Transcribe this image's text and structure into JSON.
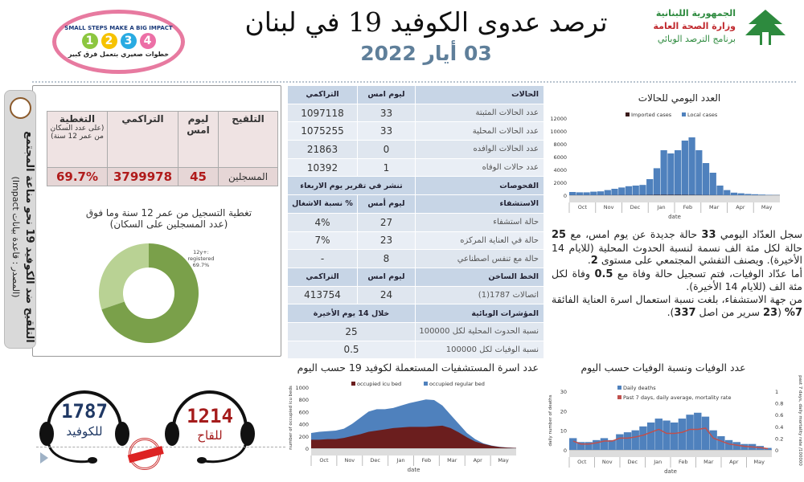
{
  "header": {
    "title": "ترصد عدوى الكوفيد 19 في لبنان",
    "date": "03 أيار 2022",
    "logo_right": [
      "الجمهورية اللبنانية",
      "وزارة الصحة العامة",
      "برنامج الترصد الوبائي"
    ],
    "logo_left": {
      "top": "SMALL STEPS MAKE A BIG IMPACT",
      "bottom": "خطوات صغيري بتعمل فرق كبير",
      "steps": [
        "1",
        "2",
        "3",
        "4"
      ]
    }
  },
  "vaccination": {
    "side_title": "التلقيح ضد الكوفيد 19 نحو مناعة المجتمع",
    "side_source": "(المصدر : قاعدة بيانات Impact)",
    "headers": {
      "vacc": "التلقيح",
      "yesterday": "ليوم امس",
      "cumulative": "التراكمي",
      "coverage": "التغطية",
      "coverage_note": "(على عدد السكان من عمر 12 سنة)"
    },
    "row": {
      "label": "المسجلين",
      "yesterday": "45",
      "cumulative": "3799978",
      "coverage": "69.7%"
    },
    "donut_title": "تغطية التسجيل من عمر 12 سنة وما فوق",
    "donut_subtitle": "(عدد المسجلين على السكان)",
    "donut_label": [
      "12y+:",
      "registered",
      "69.7%"
    ],
    "donut_value": 69.7,
    "colors": {
      "registered": "#7aa04a",
      "rest": "#b9d294"
    }
  },
  "table": {
    "cases_header": [
      "الحالات",
      "ليوم امس",
      "التراكمي"
    ],
    "cases": [
      [
        "عدد الحالات المثبتة",
        "33",
        "1097118"
      ],
      [
        "عدد الحالات المحلية",
        "33",
        "1075255"
      ],
      [
        "عدد الحالات الوافده",
        "0",
        "21863"
      ],
      [
        "عدد حالات الوفاه",
        "1",
        "10392"
      ]
    ],
    "tests_header": [
      "الفحوصات",
      "تنشر في تقرير يوم الاربعاء"
    ],
    "hosp_header": [
      "الاستشفاء",
      "ليوم أمس",
      "% نسبة الاشغال"
    ],
    "hosp": [
      [
        "حالة استشفاء",
        "27",
        "4%"
      ],
      [
        "حالة في العناية المركزه",
        "23",
        "7%"
      ],
      [
        "حالة مع تنفس اصطناعي",
        "8",
        "-"
      ]
    ],
    "hotline_header": [
      "الخط الساخن",
      "ليوم امس",
      "التراكمي"
    ],
    "hotline": [
      "اتصالات 1787(1)",
      "24",
      "413754"
    ],
    "ind_header": [
      "المؤشرات الوبائية",
      "خلال 14 يوم الأخيرة"
    ],
    "ind": [
      [
        "نسبة الحدوث المحلية لكل 100000",
        "25"
      ],
      [
        "نسبة الوفيات لكل 100000",
        "0.5"
      ]
    ]
  },
  "summary": {
    "p1": [
      "سجل العدّاد اليومي ",
      "33",
      " حالة جديدة عن يوم امس، مع ",
      "25",
      " حالة لكل مئة الف نسمة لنسبة الحدوث المحلية (للايام 14 الأخيرة). ويصنف التفشي المجتمعي على مستوى ",
      "2",
      "."
    ],
    "p2": [
      "أما عدّاد الوفيات، فتم تسجيل حالة وفاة مع ",
      "0.5",
      " وفاة لكل مئة الف (للايام 14 الأخيرة)."
    ],
    "p3": [
      "من جهة الاستشفاء، بلغت نسبة استعمال اسرة العناية الفائقة ",
      "7%",
      " (",
      "23",
      " سرير من اصل ",
      "337",
      ")."
    ]
  },
  "hotlines": [
    {
      "number": "1787",
      "label": "للكوفيد",
      "color": "#1f3864"
    },
    {
      "number": "1214",
      "label": "للقاح",
      "color": "#a51c1c"
    }
  ],
  "chart_data": [
    {
      "type": "bar",
      "title": "العدد اليومي للحالات",
      "xlabel": "date",
      "ylim": [
        0,
        12000
      ],
      "yticks": [
        0,
        2000,
        4000,
        6000,
        8000,
        10000,
        12000
      ],
      "months": [
        "Oct",
        "Nov",
        "Dec",
        "Jan",
        "Feb",
        "Mar",
        "Apr",
        "May"
      ],
      "series": [
        {
          "name": "Imported cases",
          "color": "#3a1a1a",
          "values": [
            10,
            10,
            10,
            10,
            12,
            15,
            15,
            20,
            20,
            20,
            25,
            40,
            60,
            60,
            60,
            60,
            50,
            40,
            30,
            20,
            10,
            8,
            5,
            4,
            3,
            2,
            1,
            1,
            1,
            0
          ]
        },
        {
          "name": "Local cases",
          "color": "#4f81bd",
          "values": [
            500,
            450,
            450,
            550,
            600,
            800,
            1000,
            1200,
            1400,
            1500,
            1600,
            2500,
            4200,
            7000,
            6500,
            7000,
            8500,
            9000,
            7000,
            5000,
            3500,
            1500,
            800,
            400,
            300,
            200,
            150,
            100,
            60,
            33
          ]
        }
      ]
    },
    {
      "type": "area",
      "title": "عدد اسرة المستشفيات المستعملة لكوفيد 19 حسب اليوم",
      "xlabel": "date",
      "ylabel": "number of occupied icu beds",
      "ylim": [
        0,
        1000
      ],
      "yticks": [
        0,
        200,
        400,
        600,
        800,
        1000
      ],
      "months": [
        "Oct",
        "Nov",
        "Dec",
        "Jan",
        "Feb",
        "Mar",
        "Apr",
        "May"
      ],
      "series": [
        {
          "name": "occupied icu bed",
          "color": "#6b1e1e",
          "values": [
            140,
            140,
            150,
            150,
            170,
            200,
            230,
            270,
            290,
            310,
            330,
            340,
            350,
            350,
            350,
            360,
            370,
            330,
            260,
            180,
            110,
            70,
            40,
            20,
            10,
            5
          ]
        },
        {
          "name": "occupied regular bed",
          "color": "#4f81bd",
          "values": [
            110,
            130,
            130,
            140,
            150,
            200,
            270,
            330,
            350,
            330,
            330,
            360,
            390,
            420,
            450,
            430,
            330,
            220,
            140,
            70,
            40,
            10,
            5,
            3,
            2,
            2
          ]
        }
      ]
    },
    {
      "type": "bar+line",
      "title": "عدد الوفيات ونسبة الوفيات حسب اليوم",
      "xlabel": "date",
      "ylabel": "daily number of deaths",
      "y2label": "past 7 days, daily mortality rate /100000",
      "ylim": [
        0,
        30
      ],
      "y2lim": [
        0,
        1
      ],
      "yticks": [
        0,
        10,
        20,
        30
      ],
      "y2ticks": [
        0,
        0.2,
        0.4,
        0.6,
        0.8,
        1
      ],
      "months": [
        "Oct",
        "Nov",
        "Dec",
        "Jan",
        "Feb",
        "Mar",
        "Apr",
        "May"
      ],
      "series": [
        {
          "name": "Daily deaths",
          "color": "#4f81bd",
          "values": [
            6,
            4,
            4,
            5,
            6,
            5,
            8,
            9,
            10,
            12,
            14,
            16,
            15,
            14,
            16,
            18,
            19,
            17,
            10,
            7,
            5,
            4,
            3,
            3,
            2,
            1
          ]
        },
        {
          "name": "Past 7 days, daily average, mortality rate",
          "color": "#c0504d",
          "values": [
            0.15,
            0.1,
            0.1,
            0.12,
            0.15,
            0.15,
            0.2,
            0.2,
            0.22,
            0.25,
            0.3,
            0.35,
            0.28,
            0.28,
            0.3,
            0.35,
            0.35,
            0.37,
            0.2,
            0.15,
            0.1,
            0.08,
            0.06,
            0.05,
            0.04,
            0.02
          ]
        }
      ]
    }
  ]
}
